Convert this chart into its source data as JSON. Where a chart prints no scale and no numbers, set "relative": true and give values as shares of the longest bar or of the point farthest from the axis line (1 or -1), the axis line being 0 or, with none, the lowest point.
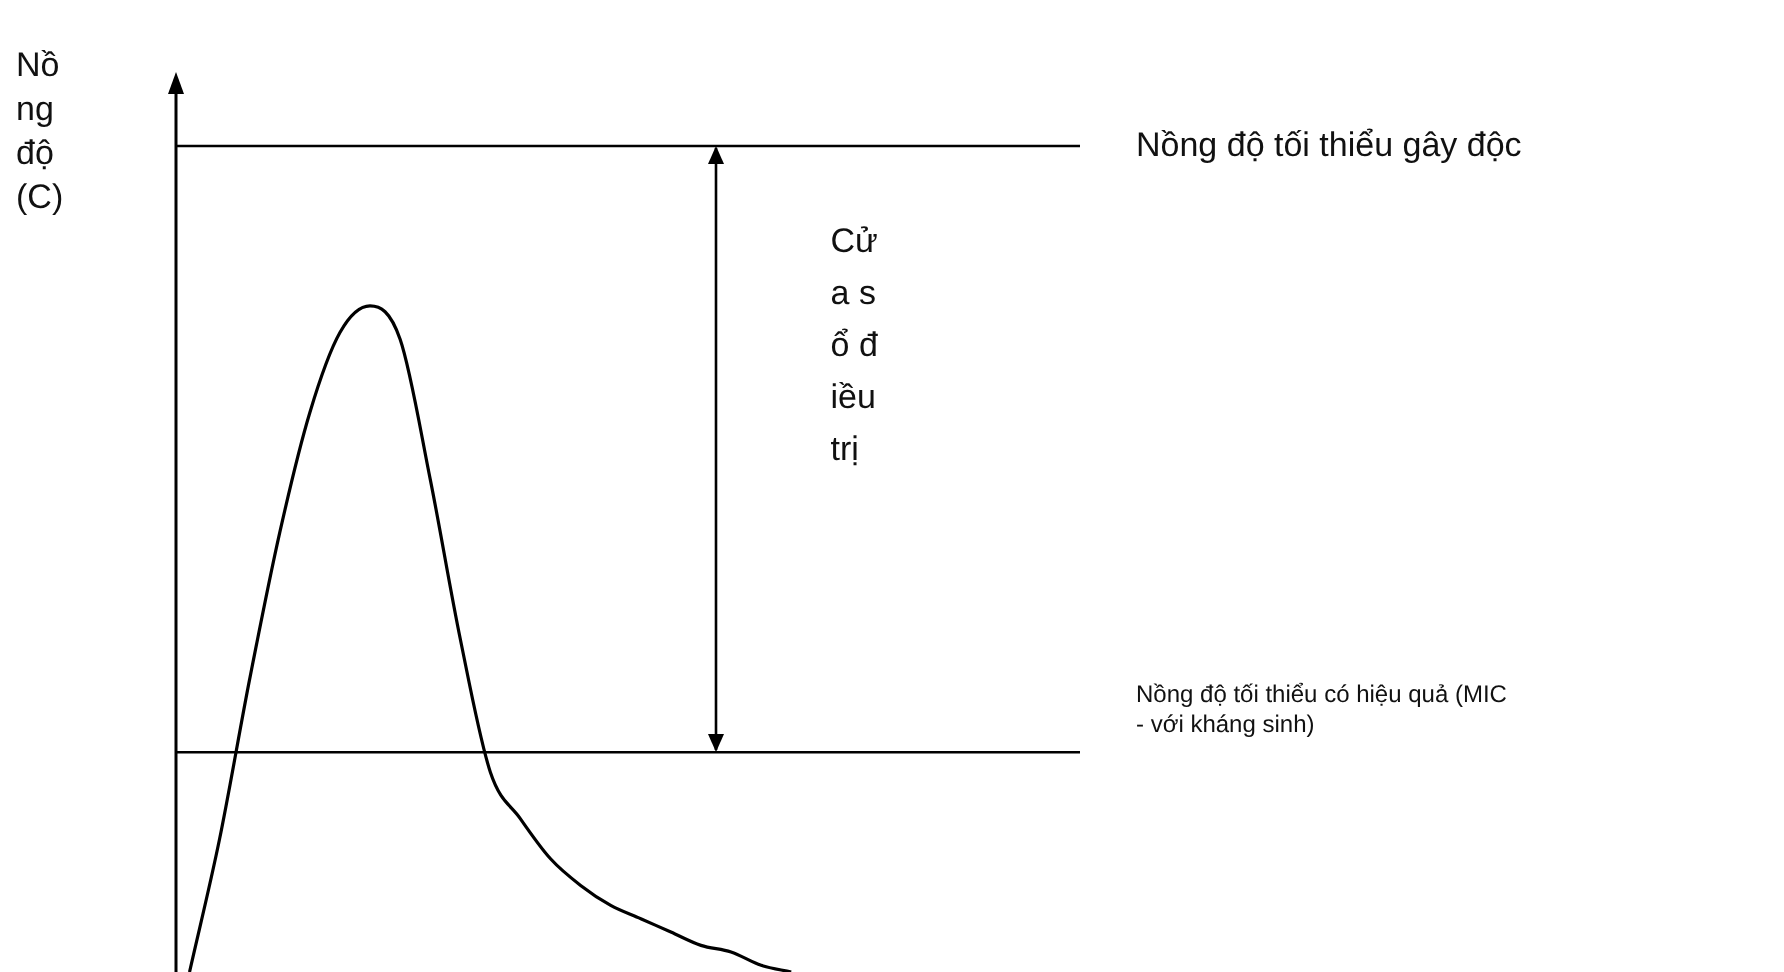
{
  "chart_data": {
    "type": "line",
    "ylabel": "Nồng độ (C)",
    "relative": true,
    "categories": [
      null,
      null,
      null,
      null,
      null,
      null,
      null,
      null,
      null,
      null,
      null,
      null,
      null,
      null,
      null,
      null,
      null,
      null,
      null,
      null,
      null
    ],
    "values": [
      0,
      0.2,
      0.44,
      0.66,
      0.84,
      0.96,
      1,
      0.95,
      0.74,
      0.5,
      0.3,
      0.23,
      0.17,
      0.13,
      0.1,
      0.08,
      0.06,
      0.04,
      0.03,
      0.01,
      0
    ],
    "color": "#000000",
    "marker": "none",
    "line_style": "solid",
    "ref_lines": [
      {
        "axis": "y",
        "value": 1.24,
        "label": "Nồng độ tối thiểu gây độc",
        "color": "#000000"
      },
      {
        "axis": "y",
        "value": 0.33,
        "label": "Nồng độ tối thiểu có hiệu quả (MIC - với kháng sinh)",
        "color": "#000000"
      }
    ],
    "annotations": [
      "Cửa sổ điều trị"
    ]
  }
}
